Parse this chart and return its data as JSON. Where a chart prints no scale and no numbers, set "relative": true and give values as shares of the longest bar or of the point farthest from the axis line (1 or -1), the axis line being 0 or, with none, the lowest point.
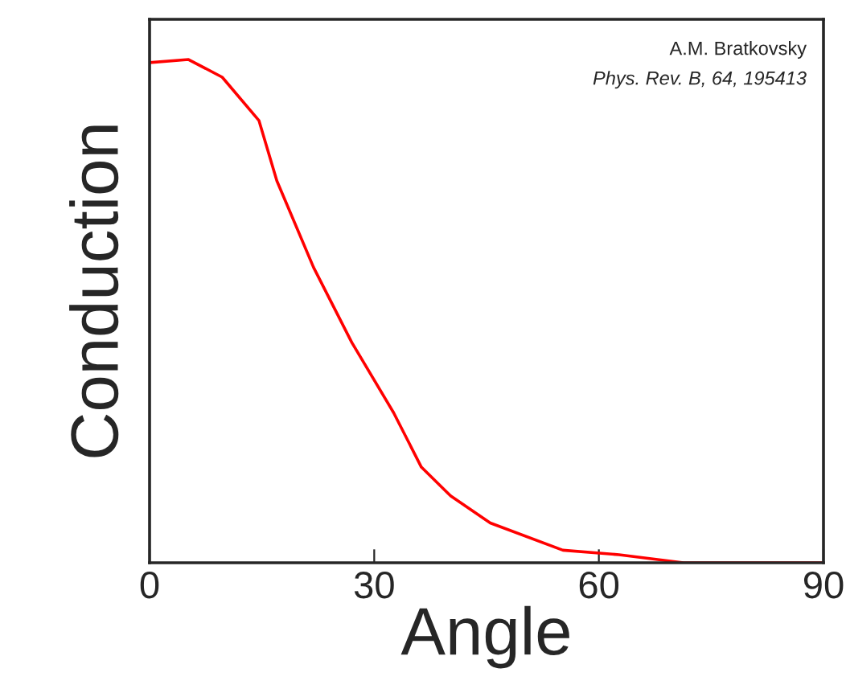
{
  "chart_data": {
    "type": "line",
    "xlabel": "Angle",
    "ylabel": "Conduction",
    "relative": true,
    "x": [
      0,
      5.2,
      9.7,
      14.6,
      17,
      21.9,
      27,
      32.6,
      36.3,
      40.2,
      45.5,
      55.2,
      62.7,
      71.3,
      90
    ],
    "series": [
      {
        "color": "#ff0000",
        "values": [
          0.994,
          1,
          0.965,
          0.879,
          0.759,
          0.587,
          0.438,
          0.298,
          0.19,
          0.133,
          0.079,
          0.025,
          0.016,
          0,
          0
        ]
      }
    ],
    "xlim": [
      0,
      90
    ],
    "xticks": [
      0,
      30,
      60,
      90
    ],
    "tick_labels": "x",
    "grid": false,
    "legend": false,
    "marker": "none",
    "line_style": "solid",
    "annotations": [
      "A.M. Bratkovsky",
      "Phys. Rev. B, 64, 195413"
    ]
  }
}
